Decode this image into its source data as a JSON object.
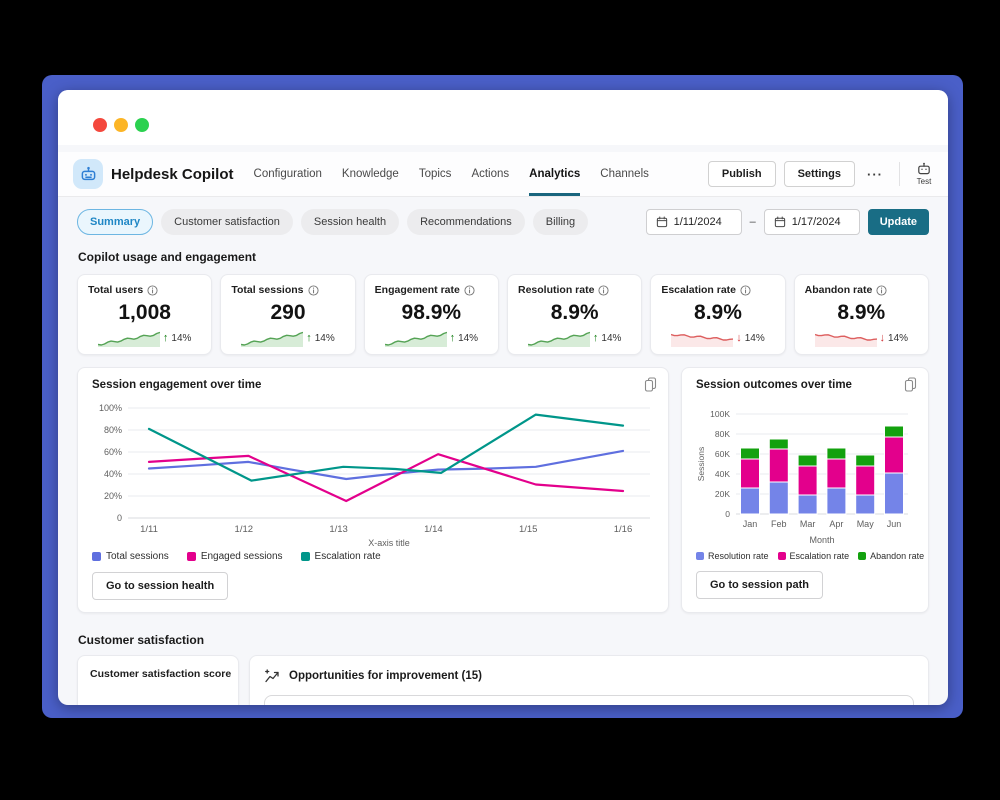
{
  "window": {
    "dots": [
      "#f4483d",
      "#fcb526",
      "#2bd14f"
    ]
  },
  "header": {
    "app_title": "Helpdesk Copilot",
    "nav": [
      {
        "label": "Configuration",
        "active": false
      },
      {
        "label": "Knowledge",
        "active": false
      },
      {
        "label": "Topics",
        "active": false
      },
      {
        "label": "Actions",
        "active": false
      },
      {
        "label": "Analytics",
        "active": true
      },
      {
        "label": "Channels",
        "active": false
      }
    ],
    "publish_label": "Publish",
    "settings_label": "Settings",
    "more_label": "···",
    "test_label": "Test"
  },
  "filters": {
    "tabs": [
      {
        "label": "Summary",
        "selected": true
      },
      {
        "label": "Customer satisfaction",
        "selected": false
      },
      {
        "label": "Session health",
        "selected": false
      },
      {
        "label": "Recommendations",
        "selected": false
      },
      {
        "label": "Billing",
        "selected": false
      }
    ],
    "date_from": "1/11/2024",
    "date_separator": "–",
    "date_to": "1/17/2024",
    "update_label": "Update"
  },
  "sections": {
    "usage": "Copilot usage and engagement",
    "csat": "Customer satisfaction"
  },
  "kpis": [
    {
      "label": "Total users",
      "value": "1,008",
      "delta": "14%",
      "trend": "up"
    },
    {
      "label": "Total sessions",
      "value": "290",
      "delta": "14%",
      "trend": "up"
    },
    {
      "label": "Engagement rate",
      "value": "98.9%",
      "delta": "14%",
      "trend": "up"
    },
    {
      "label": "Resolution rate",
      "value": "8.9%",
      "delta": "14%",
      "trend": "up"
    },
    {
      "label": "Escalation rate",
      "value": "8.9%",
      "delta": "14%",
      "trend": "down"
    },
    {
      "label": "Abandon rate",
      "value": "8.9%",
      "delta": "14%",
      "trend": "down"
    }
  ],
  "chart_data": [
    {
      "type": "line",
      "title": "Session engagement over time",
      "xlabel": "X-axis title",
      "x_ticks": [
        "1/11",
        "1/12",
        "1/13",
        "1/14",
        "1/15",
        "1/16"
      ],
      "y_ticks": [
        "0",
        "20%",
        "40%",
        "60%",
        "80%",
        "100%"
      ],
      "ylim": [
        0,
        100
      ],
      "grid": true,
      "legend_position": "bottom",
      "series": [
        {
          "name": "Total sessions",
          "color": "#5f6fdf",
          "points": [
            [
              0,
              45
            ],
            [
              0.55,
              48
            ],
            [
              1.05,
              51
            ],
            [
              1.5,
              44
            ],
            [
              2.08,
              35.5
            ],
            [
              2.6,
              40.5
            ],
            [
              3.05,
              44
            ],
            [
              3.6,
              45
            ],
            [
              4.08,
              46.5
            ],
            [
              5,
              61
            ]
          ]
        },
        {
          "name": "Engaged sessions",
          "color": "#e3008c",
          "points": [
            [
              0,
              51
            ],
            [
              0.55,
              54
            ],
            [
              1.05,
              56.5
            ],
            [
              2.08,
              15.5
            ],
            [
              3.05,
              58
            ],
            [
              4.08,
              30.5
            ],
            [
              5,
              24.5
            ]
          ]
        },
        {
          "name": "Escalation rate",
          "color": "#00968a",
          "points": [
            [
              0,
              81
            ],
            [
              1.08,
              34
            ],
            [
              2.05,
              46.5
            ],
            [
              2.6,
              44.5
            ],
            [
              3.08,
              41
            ],
            [
              4.08,
              94
            ],
            [
              5,
              84
            ]
          ]
        }
      ],
      "footer_button": "Go to session health"
    },
    {
      "type": "stacked-bar",
      "title": "Session outcomes over time",
      "xlabel": "Month",
      "ylabel": "Sessions",
      "categories": [
        "Jan",
        "Feb",
        "Mar",
        "Apr",
        "May",
        "Jun"
      ],
      "y_ticks": [
        "0",
        "20K",
        "40K",
        "60K",
        "80K",
        "100K"
      ],
      "ylim": [
        0,
        100
      ],
      "grid": true,
      "legend_position": "bottom",
      "series": [
        {
          "name": "Resolution rate",
          "color": "#7484e8",
          "values": [
            26,
            32,
            19,
            26,
            19,
            41
          ]
        },
        {
          "name": "Escalation rate",
          "color": "#e3008c",
          "values": [
            29,
            33,
            29,
            29,
            29,
            36
          ]
        },
        {
          "name": "Abandon rate",
          "color": "#13a10e",
          "values": [
            11,
            10,
            11,
            11,
            11,
            11
          ]
        }
      ],
      "footer_button": "Go to session path"
    }
  ],
  "bottom": {
    "csat_card_title": "Customer satisfaction score",
    "opportunities_title": "Opportunities for improvement (15)"
  },
  "colors": {
    "frame": "#4a5fc8",
    "accent_teal": "#196d85",
    "positive": "#107c10",
    "negative": "#d13438",
    "spark_up": "#55a355",
    "spark_down": "#dd5f5f"
  }
}
